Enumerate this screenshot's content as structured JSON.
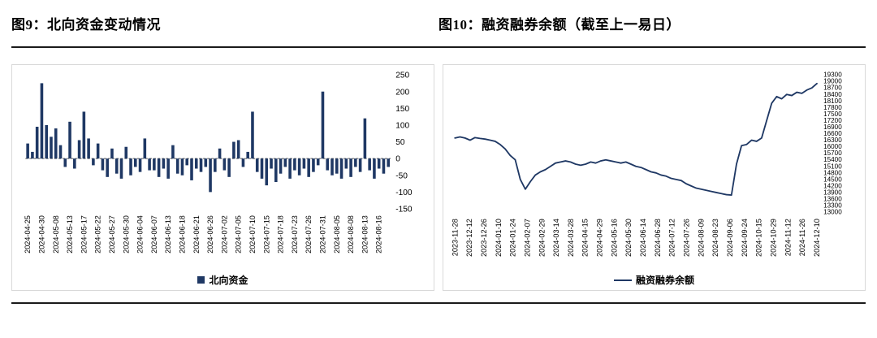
{
  "accent_color": "#1F3864",
  "chart_data": [
    {
      "type": "bar",
      "title": "图9：北向资金变动情况",
      "legend": "北向资金",
      "color": "#1F3864",
      "ylim": [
        -150,
        250
      ],
      "yticks": [
        250,
        200,
        150,
        100,
        50,
        0,
        -50,
        -100,
        -150
      ],
      "label_every": 3,
      "x_labels": [
        "2024-04-25",
        "2024-04-30",
        "2024-05-08",
        "2024-05-13",
        "2024-05-17",
        "2024-05-22",
        "2024-05-27",
        "2024-05-30",
        "2024-06-04",
        "2024-06-07",
        "2024-06-13",
        "2024-06-18",
        "2024-06-21",
        "2024-06-26",
        "2024-07-02",
        "2024-07-05",
        "2024-07-10",
        "2024-07-15",
        "2024-07-18",
        "2024-07-23",
        "2024-07-26",
        "2024-07-31",
        "2024-08-05",
        "2024-08-08",
        "2024-08-13",
        "2024-08-16"
      ],
      "values": [
        45,
        20,
        95,
        225,
        100,
        65,
        90,
        40,
        -25,
        110,
        -30,
        55,
        140,
        60,
        -20,
        45,
        -35,
        -55,
        30,
        -45,
        -60,
        35,
        -50,
        -25,
        -40,
        60,
        -35,
        -35,
        -55,
        -30,
        -60,
        40,
        -45,
        -50,
        -20,
        -65,
        -30,
        -40,
        -25,
        -100,
        -40,
        30,
        -35,
        -55,
        50,
        55,
        -25,
        20,
        140,
        -40,
        -60,
        -80,
        -30,
        -70,
        -45,
        -25,
        -60,
        -35,
        -50,
        -30,
        -55,
        -40,
        -20,
        200,
        -35,
        -50,
        -45,
        -60,
        -30,
        -55,
        -25,
        -40,
        120,
        -35,
        -60,
        -30,
        -45,
        -25
      ]
    },
    {
      "type": "line",
      "title": "图10：融资融券余额（截至上一易日）",
      "legend": "融资融券余额",
      "color": "#1F3864",
      "ylim": [
        13000,
        19300
      ],
      "yticks": [
        19300,
        19000,
        18700,
        18400,
        18100,
        17800,
        17500,
        17200,
        16900,
        16600,
        16300,
        16000,
        15700,
        15400,
        15100,
        14800,
        14500,
        14200,
        13900,
        13600,
        13300,
        13000
      ],
      "x_labels": [
        "2023-11-28",
        "2023-12-12",
        "2023-12-26",
        "2024-01-10",
        "2024-01-24",
        "2024-02-07",
        "2024-02-29",
        "2024-03-14",
        "2024-03-28",
        "2024-04-15",
        "2024-04-29",
        "2024-05-16",
        "2024-05-30",
        "2024-06-14",
        "2024-06-28",
        "2024-07-12",
        "2024-07-26",
        "2024-08-09",
        "2024-08-23",
        "2024-09-06",
        "2024-09-24",
        "2024-10-15",
        "2024-10-29",
        "2024-11-12",
        "2024-11-26",
        "2024-12-10"
      ],
      "values": [
        16400,
        16450,
        16400,
        16300,
        16420,
        16380,
        16350,
        16300,
        16250,
        16100,
        15900,
        15600,
        15400,
        14500,
        14050,
        14400,
        14700,
        14850,
        14950,
        15100,
        15250,
        15300,
        15350,
        15300,
        15200,
        15150,
        15200,
        15300,
        15250,
        15350,
        15400,
        15350,
        15300,
        15250,
        15300,
        15200,
        15100,
        15050,
        14950,
        14850,
        14800,
        14700,
        14650,
        14550,
        14500,
        14450,
        14300,
        14200,
        14100,
        14050,
        14000,
        13950,
        13900,
        13850,
        13800,
        13780,
        15200,
        16050,
        16100,
        16300,
        16250,
        16400,
        17200,
        18000,
        18300,
        18200,
        18400,
        18350,
        18500,
        18450,
        18600,
        18700,
        18900
      ]
    }
  ]
}
